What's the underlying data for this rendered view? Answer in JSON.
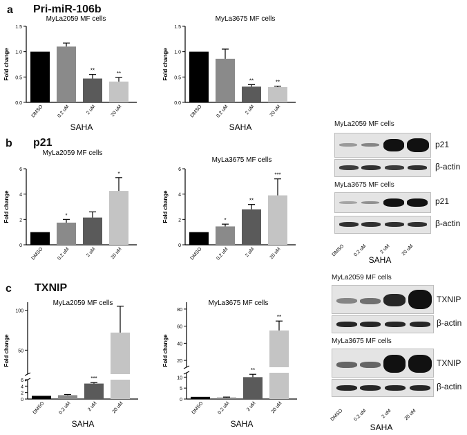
{
  "panels": {
    "a": {
      "letter": "a",
      "title": "Pri-miR-106b"
    },
    "b": {
      "letter": "b",
      "title": "p21"
    },
    "c": {
      "letter": "c",
      "title": "TXNIP"
    }
  },
  "common": {
    "categories": [
      "DMSO",
      "0.2 uM",
      "2 uM",
      "20 uM"
    ],
    "ylabel": "Fold change",
    "xlabel": "SAHA"
  },
  "chart_data": [
    {
      "id": "a1",
      "type": "bar",
      "title": "MyLa2059 MF cells",
      "categories": [
        "DMSO",
        "0.2 uM",
        "2 uM",
        "20 uM"
      ],
      "values": [
        1.0,
        1.1,
        0.47,
        0.41
      ],
      "errors": [
        0,
        0.07,
        0.08,
        0.08
      ],
      "annotations": [
        "",
        "",
        "**",
        "**"
      ],
      "ylim": [
        0,
        1.5
      ],
      "yticks": [
        "0.0",
        "0.5",
        "1.0",
        "1.5"
      ],
      "ylabel": "Fold change",
      "xlabel": "SAHA"
    },
    {
      "id": "a2",
      "type": "bar",
      "title": "MyLa3675 MF cells",
      "categories": [
        "DMSO",
        "0.2 uM",
        "2 uM",
        "20 uM"
      ],
      "values": [
        1.0,
        0.86,
        0.31,
        0.3
      ],
      "errors": [
        0,
        0.19,
        0.04,
        0.02
      ],
      "annotations": [
        "",
        "",
        "**",
        "**"
      ],
      "ylim": [
        0,
        1.5
      ],
      "yticks": [
        "0.0",
        "0.5",
        "1.0",
        "1.5"
      ],
      "ylabel": "Fold change",
      "xlabel": "SAHA"
    },
    {
      "id": "b1",
      "type": "bar",
      "title": "MyLa2059 MF cells",
      "categories": [
        "DMSO",
        "0.2 uM",
        "2 uM",
        "20 uM"
      ],
      "values": [
        1.0,
        1.75,
        2.15,
        4.25
      ],
      "errors": [
        0,
        0.25,
        0.45,
        1.05
      ],
      "annotations": [
        "",
        "*",
        "",
        "*"
      ],
      "ylim": [
        0,
        6
      ],
      "yticks": [
        "0",
        "2",
        "4",
        "6"
      ],
      "ylabel": "Fold change",
      "xlabel": "SAHA"
    },
    {
      "id": "b2",
      "type": "bar",
      "title": "MyLa3675 MF cells",
      "categories": [
        "DMSO",
        "0.2 uM",
        "2 uM",
        "20 uM"
      ],
      "values": [
        1.0,
        1.45,
        2.8,
        3.9
      ],
      "errors": [
        0,
        0.18,
        0.38,
        1.3
      ],
      "annotations": [
        "",
        "*",
        "**",
        "***"
      ],
      "ylim": [
        0,
        6
      ],
      "yticks": [
        "0",
        "2",
        "4",
        "6"
      ],
      "ylabel": "Fold change",
      "xlabel": "SAHA"
    },
    {
      "id": "c1",
      "type": "bar",
      "title": "MyLa2059 MF cells",
      "categories": [
        "DMSO",
        "0.2 uM",
        "2 uM",
        "20 uM"
      ],
      "values": [
        1.0,
        1.2,
        4.8,
        72
      ],
      "errors": [
        0,
        0.2,
        0.3,
        33
      ],
      "annotations": [
        "",
        "",
        "***",
        ""
      ],
      "axis_break": true,
      "yticks_lower": [
        "0",
        "2",
        "4",
        "6"
      ],
      "yticks_upper": [
        "50",
        "100"
      ],
      "ylabel": "Fold change",
      "xlabel": "SAHA"
    },
    {
      "id": "c2",
      "type": "bar",
      "title": "MyLa3675 MF cells",
      "categories": [
        "DMSO",
        "0.2 uM",
        "2 uM",
        "20 uM"
      ],
      "values": [
        1.0,
        0.7,
        10,
        55
      ],
      "errors": [
        0,
        0.2,
        1.3,
        11
      ],
      "annotations": [
        "",
        "",
        "**",
        "**"
      ],
      "axis_break": true,
      "yticks_lower": [
        "0",
        "5",
        "10"
      ],
      "yticks_upper": [
        "20",
        "40",
        "60",
        "80"
      ],
      "ylabel": "Fold change",
      "xlabel": "SAHA"
    }
  ],
  "blots": {
    "b": {
      "cell1": "MyLa2059 MF cells",
      "cell2": "MyLa3675 MF cells",
      "target": "p21",
      "loading": "β-actin",
      "xlabel": "SAHA",
      "lanes": [
        "DMSO",
        "0.2 uM",
        "2 uM",
        "20 uM"
      ]
    },
    "c": {
      "cell1": "MyLa2059 MF cells",
      "cell2": "MyLa3675 MF cells",
      "target": "TXNIP",
      "loading": "β-actin",
      "xlabel": "SAHA",
      "lanes": [
        "DMSO",
        "0.2 uM",
        "2 uM",
        "20 uM"
      ]
    }
  },
  "colors": {
    "dmso": "#000000",
    "c02": "#8a8a8a",
    "c2": "#5a5a5a",
    "c20": "#c4c4c4"
  }
}
